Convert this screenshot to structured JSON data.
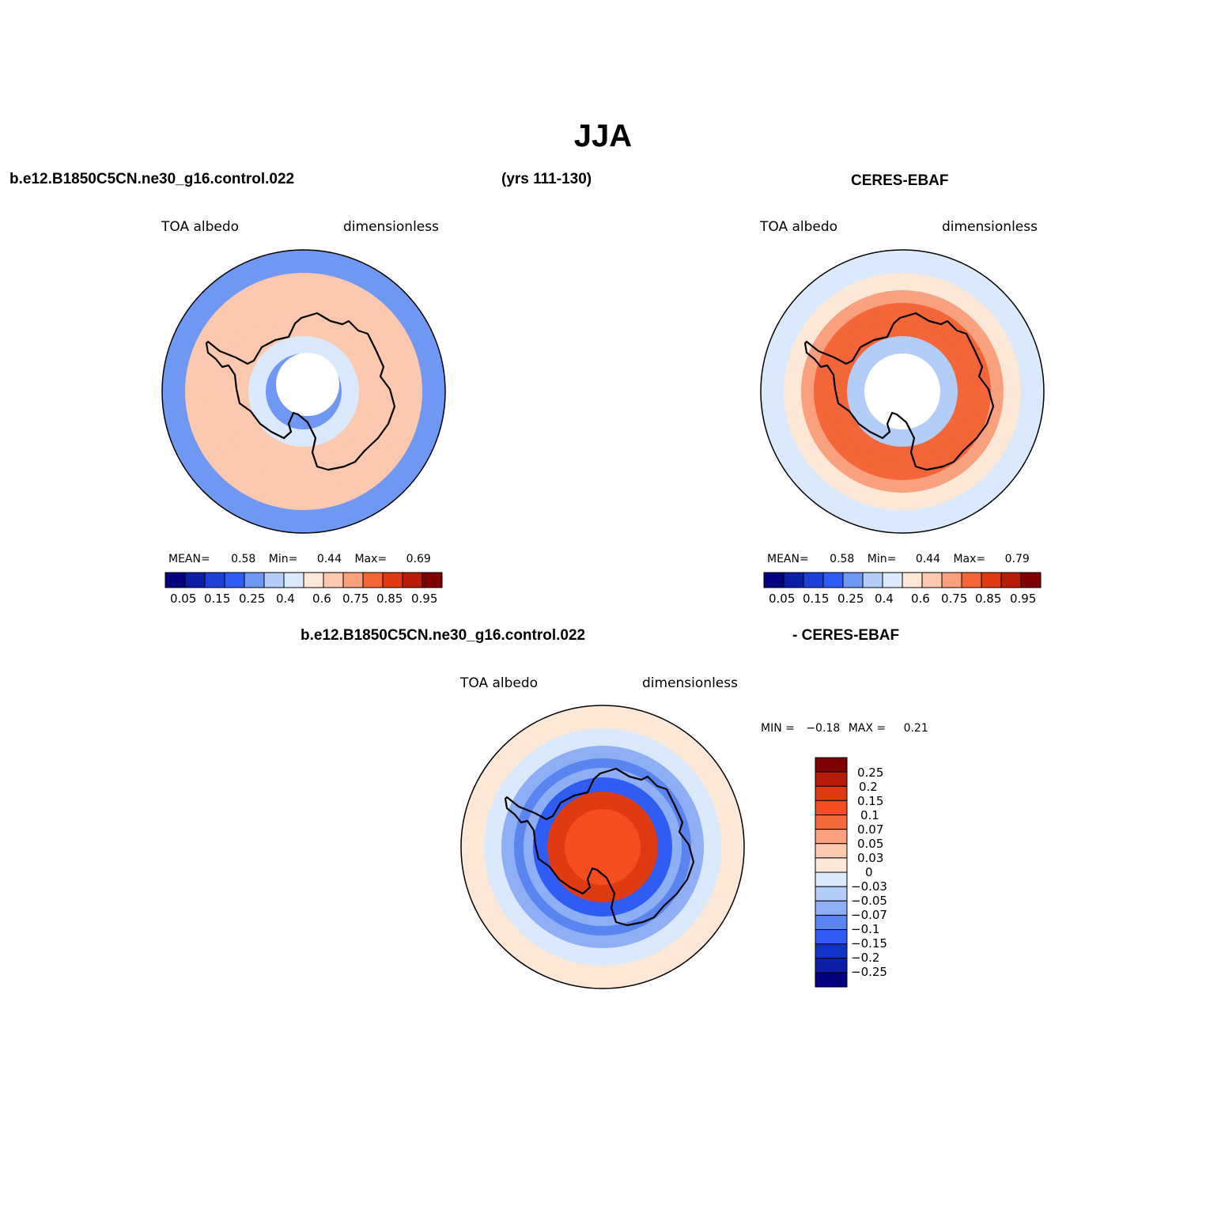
{
  "colors": {
    "scale14": [
      "#00007f",
      "#0a1fa3",
      "#1e3fd8",
      "#2f5cf2",
      "#6f97f4",
      "#b2cdf7",
      "#daeafc",
      "#fde8d8",
      "#fcc8ae",
      "#f9a07e",
      "#f46637",
      "#e03a12",
      "#b71c06",
      "#7f0000"
    ],
    "diff": [
      "#7f0000",
      "#b71c06",
      "#e03a12",
      "#f44d1e",
      "#f46a3c",
      "#f9a07e",
      "#fcc8ae",
      "#fde8d8",
      "#daeafc",
      "#b2cdf7",
      "#8eaff5",
      "#5a84f0",
      "#2f5cf2",
      "#1033c8",
      "#0a1fa3",
      "#00007f"
    ],
    "coast": "#000000"
  },
  "figure": {
    "title": "JJA",
    "case_name": "b.e12.B1850C5CN.ne30_g16.control.022",
    "years": "(yrs 111-130)",
    "obs_name": "CERES-EBAF"
  },
  "panels": [
    {
      "id": "model",
      "left_label": "TOA albedo",
      "right_label": "dimensionless",
      "stats": {
        "mean_label": "MEAN=",
        "mean": "0.58",
        "min_label": "Min=",
        "min": "0.44",
        "max_label": "Max=",
        "max": "0.69"
      },
      "colorbar_labels": [
        "0.05",
        "0.15",
        "0.25",
        "0.4",
        "0.6",
        "0.75",
        "0.85",
        "0.95"
      ],
      "ring_levels": [
        0.4,
        0.6,
        0.6,
        0.6,
        0.6,
        0.6,
        0.5,
        0.4
      ]
    },
    {
      "id": "obs",
      "left_label": "TOA albedo",
      "right_label": "dimensionless",
      "stats": {
        "mean_label": "MEAN=",
        "mean": "0.58",
        "min_label": "Min=",
        "min": "0.44",
        "max_label": "Max=",
        "max": "0.79"
      },
      "colorbar_labels": [
        "0.05",
        "0.15",
        "0.25",
        "0.4",
        "0.6",
        "0.75",
        "0.85",
        "0.95"
      ],
      "ring_levels": [
        0.5,
        0.55,
        0.65,
        0.7,
        0.75,
        0.7,
        0.45,
        0.0
      ]
    }
  ],
  "difference": {
    "title_left": "b.e12.B1850C5CN.ne30_g16.control.022",
    "title_right": "- CERES-EBAF",
    "left_label": "TOA albedo",
    "right_label": "dimensionless",
    "min_label": "MIN =",
    "min": "−0.18",
    "max_label": "MAX =",
    "max": "0.21",
    "colorbar_labels": [
      "0.25",
      "0.2",
      "0.15",
      "0.1",
      "0.07",
      "0.05",
      "0.03",
      "0",
      "−0.03",
      "−0.05",
      "−0.07",
      "−0.1",
      "−0.15",
      "−0.2",
      "−0.25"
    ],
    "ring_levels": [
      0.0,
      -0.03,
      -0.07,
      -0.1,
      -0.07,
      -0.15,
      0.15,
      0.1
    ]
  }
}
